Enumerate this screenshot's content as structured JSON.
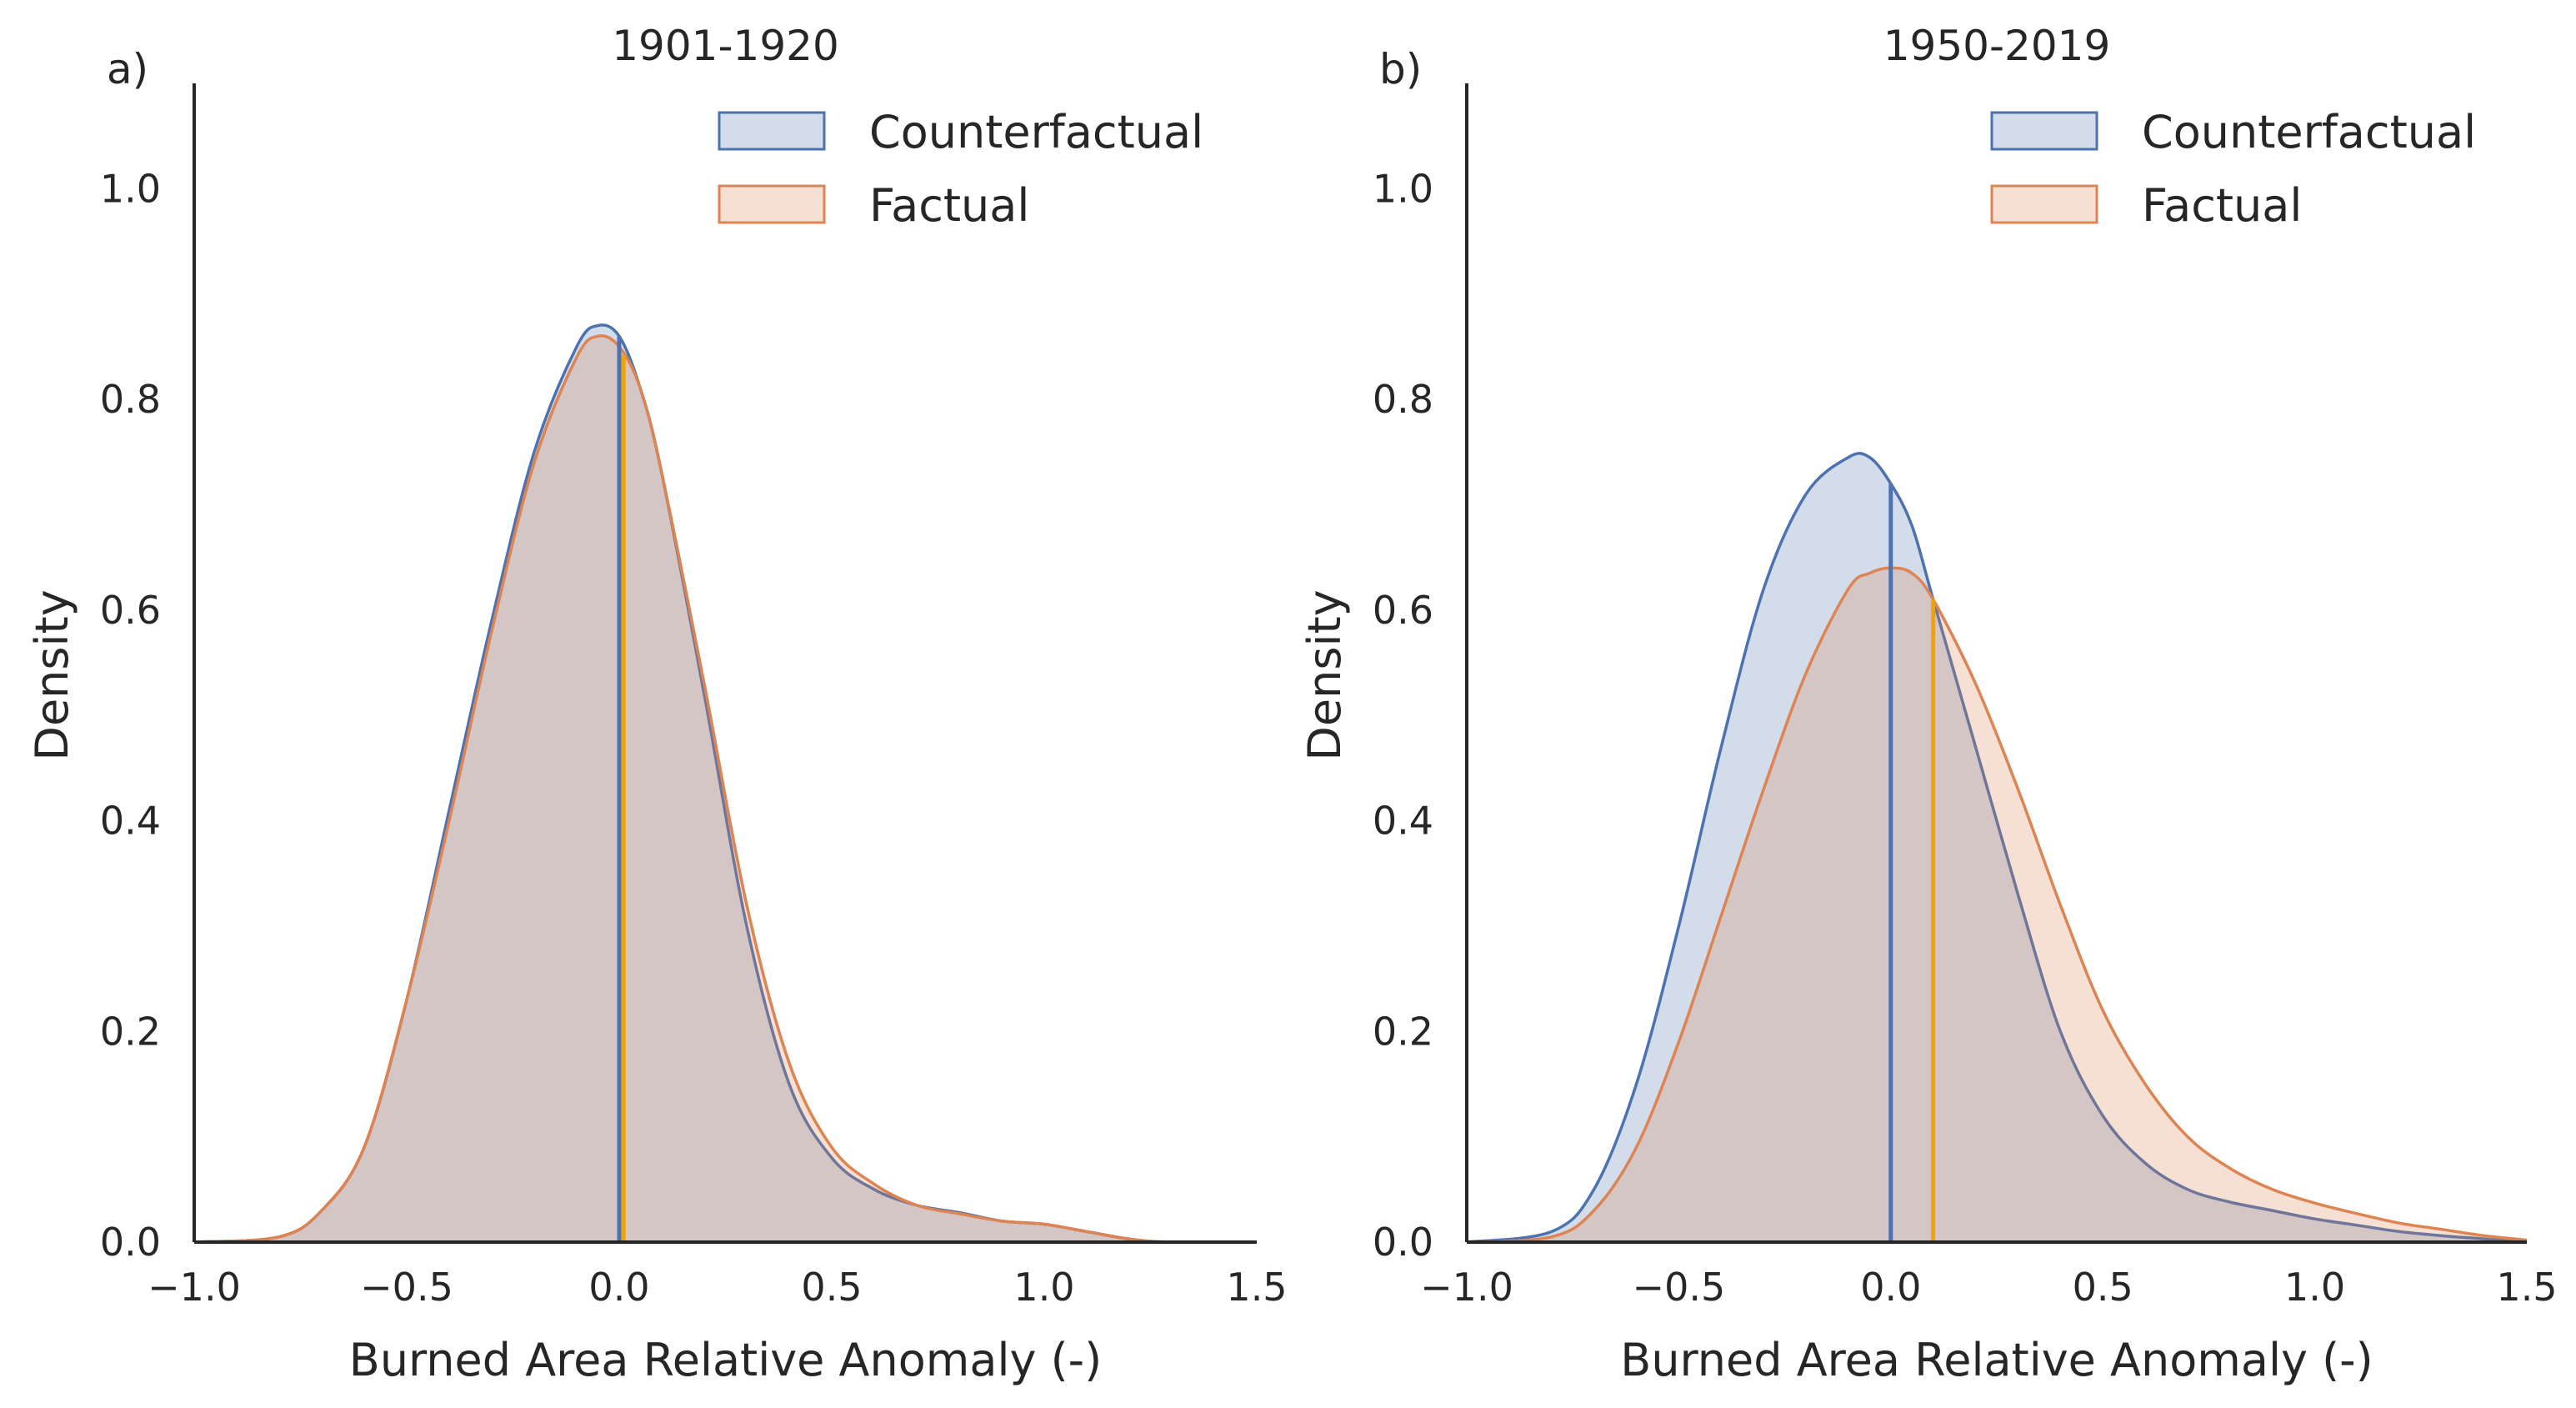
{
  "colors": {
    "counterfactual_line": "#4c72b0",
    "counterfactual_fill": "#4c72b0",
    "factual_line": "#dd8452",
    "factual_fill": "#dd8452",
    "counterfactual_median": "#4c72b0",
    "factual_median": "#f5a300",
    "axis": "#262626"
  },
  "chart_data": [
    {
      "type": "area",
      "panel_label": "a)",
      "title": "1901-1920",
      "xlabel": "Burned Area Relative Anomaly (-)",
      "ylabel": "Density",
      "xlim": [
        -1.0,
        1.5
      ],
      "ylim": [
        0.0,
        1.1
      ],
      "xticks": [
        -1.0,
        -0.5,
        0.0,
        0.5,
        1.0,
        1.5
      ],
      "xtick_labels": [
        "−1.0",
        "−0.5",
        "0.0",
        "0.5",
        "1.0",
        "1.5"
      ],
      "yticks": [
        0.0,
        0.2,
        0.4,
        0.6,
        0.8,
        1.0
      ],
      "ytick_labels": [
        "0.0",
        "0.2",
        "0.4",
        "0.6",
        "0.8",
        "1.0"
      ],
      "grid": false,
      "legend_position": "top-right",
      "series": [
        {
          "name": "Counterfactual",
          "color_key": "counterfactual",
          "x": [
            -1.0,
            -0.8,
            -0.7,
            -0.6,
            -0.5,
            -0.4,
            -0.3,
            -0.2,
            -0.1,
            -0.05,
            0.0,
            0.05,
            0.1,
            0.2,
            0.3,
            0.4,
            0.5,
            0.6,
            0.7,
            0.8,
            0.9,
            1.0,
            1.1,
            1.2,
            1.3,
            1.5
          ],
          "y": [
            0.0,
            0.005,
            0.03,
            0.09,
            0.23,
            0.41,
            0.59,
            0.75,
            0.85,
            0.87,
            0.86,
            0.81,
            0.73,
            0.52,
            0.3,
            0.15,
            0.08,
            0.05,
            0.035,
            0.028,
            0.02,
            0.017,
            0.01,
            0.003,
            0.0,
            0.0
          ],
          "median": 0.0
        },
        {
          "name": "Factual",
          "color_key": "factual",
          "x": [
            -1.0,
            -0.8,
            -0.7,
            -0.6,
            -0.5,
            -0.4,
            -0.3,
            -0.2,
            -0.1,
            -0.05,
            0.0,
            0.05,
            0.1,
            0.2,
            0.3,
            0.4,
            0.5,
            0.6,
            0.7,
            0.8,
            0.9,
            1.0,
            1.1,
            1.2,
            1.3,
            1.5
          ],
          "y": [
            0.0,
            0.005,
            0.03,
            0.09,
            0.23,
            0.4,
            0.58,
            0.74,
            0.84,
            0.86,
            0.85,
            0.81,
            0.73,
            0.53,
            0.32,
            0.17,
            0.09,
            0.055,
            0.035,
            0.027,
            0.02,
            0.017,
            0.01,
            0.003,
            0.0,
            0.0
          ],
          "median": 0.01
        }
      ]
    },
    {
      "type": "area",
      "panel_label": "b)",
      "title": "1950-2019",
      "xlabel": "Burned Area Relative Anomaly (-)",
      "ylabel": "Density",
      "xlim": [
        -1.0,
        1.5
      ],
      "ylim": [
        0.0,
        1.1
      ],
      "xticks": [
        -1.0,
        -0.5,
        0.0,
        0.5,
        1.0,
        1.5
      ],
      "xtick_labels": [
        "−1.0",
        "−0.5",
        "0.0",
        "0.5",
        "1.0",
        "1.5"
      ],
      "yticks": [
        0.0,
        0.2,
        0.4,
        0.6,
        0.8,
        1.0
      ],
      "ytick_labels": [
        "0.0",
        "0.2",
        "0.4",
        "0.6",
        "0.8",
        "1.0"
      ],
      "grid": false,
      "legend_position": "top-right",
      "series": [
        {
          "name": "Counterfactual",
          "color_key": "counterfactual",
          "x": [
            -1.0,
            -0.8,
            -0.7,
            -0.6,
            -0.5,
            -0.4,
            -0.3,
            -0.2,
            -0.1,
            -0.05,
            0.0,
            0.05,
            0.1,
            0.2,
            0.3,
            0.4,
            0.5,
            0.6,
            0.7,
            0.8,
            0.9,
            1.0,
            1.1,
            1.2,
            1.3,
            1.4,
            1.5
          ],
          "y": [
            0.0,
            0.01,
            0.05,
            0.15,
            0.3,
            0.47,
            0.62,
            0.71,
            0.745,
            0.745,
            0.72,
            0.68,
            0.61,
            0.47,
            0.33,
            0.2,
            0.12,
            0.075,
            0.05,
            0.038,
            0.03,
            0.022,
            0.016,
            0.01,
            0.006,
            0.003,
            0.0
          ],
          "median": 0.0
        },
        {
          "name": "Factual",
          "color_key": "factual",
          "x": [
            -1.0,
            -0.8,
            -0.7,
            -0.6,
            -0.5,
            -0.4,
            -0.3,
            -0.2,
            -0.1,
            -0.05,
            0.0,
            0.05,
            0.1,
            0.2,
            0.3,
            0.4,
            0.5,
            0.6,
            0.7,
            0.8,
            0.9,
            1.0,
            1.1,
            1.2,
            1.3,
            1.4,
            1.5
          ],
          "y": [
            0.0,
            0.005,
            0.03,
            0.09,
            0.19,
            0.31,
            0.43,
            0.54,
            0.62,
            0.635,
            0.64,
            0.635,
            0.61,
            0.53,
            0.43,
            0.32,
            0.22,
            0.15,
            0.1,
            0.07,
            0.05,
            0.037,
            0.027,
            0.018,
            0.012,
            0.006,
            0.002
          ],
          "median": 0.1
        }
      ]
    }
  ]
}
